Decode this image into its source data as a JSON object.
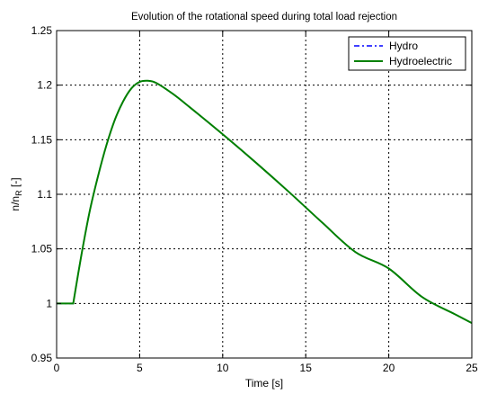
{
  "chart_data": {
    "type": "line",
    "title": "Evolution of the rotational speed during total load rejection",
    "xlabel": "Time [s]",
    "ylabel_main": "n/n",
    "ylabel_sub": "R",
    "ylabel_tail": " [-]",
    "xlim": [
      0,
      25
    ],
    "ylim": [
      0.95,
      1.25
    ],
    "x_ticks": [
      0,
      5,
      10,
      15,
      20,
      25
    ],
    "y_ticks": [
      0.95,
      1,
      1.05,
      1.1,
      1.15,
      1.2,
      1.25
    ],
    "x_tick_labels": [
      "0",
      "5",
      "10",
      "15",
      "20",
      "25"
    ],
    "y_tick_labels": [
      "0.95",
      "1",
      "1.05",
      "1.1",
      "1.15",
      "1.2",
      "1.25"
    ],
    "grid": true,
    "legend_position": "top-right",
    "series": [
      {
        "name": "Hydro",
        "color": "#0000ff",
        "style": "dashdot",
        "x": [
          0,
          1.0,
          1.5,
          2.0,
          2.5,
          3.0,
          3.5,
          4.0,
          4.5,
          5.0,
          5.5,
          6.0,
          7.0,
          8.0,
          10.0,
          12.0,
          14.0,
          16.0,
          18.0,
          20.0,
          22.0,
          24.0,
          25.0
        ],
        "y": [
          1.0,
          1.0,
          1.045,
          1.085,
          1.117,
          1.145,
          1.168,
          1.185,
          1.197,
          1.203,
          1.204,
          1.202,
          1.192,
          1.18,
          1.155,
          1.129,
          1.102,
          1.074,
          1.047,
          1.032,
          1.006,
          0.99,
          0.982
        ]
      },
      {
        "name": "Hydroelectric",
        "color": "#008000",
        "style": "solid",
        "x": [
          0,
          1.0,
          1.5,
          2.0,
          2.5,
          3.0,
          3.5,
          4.0,
          4.5,
          5.0,
          5.5,
          6.0,
          7.0,
          8.0,
          10.0,
          12.0,
          14.0,
          16.0,
          18.0,
          20.0,
          22.0,
          24.0,
          25.0
        ],
        "y": [
          1.0,
          1.0,
          1.045,
          1.085,
          1.117,
          1.145,
          1.168,
          1.185,
          1.197,
          1.203,
          1.204,
          1.202,
          1.192,
          1.18,
          1.155,
          1.129,
          1.102,
          1.074,
          1.047,
          1.032,
          1.006,
          0.99,
          0.982
        ]
      }
    ]
  }
}
